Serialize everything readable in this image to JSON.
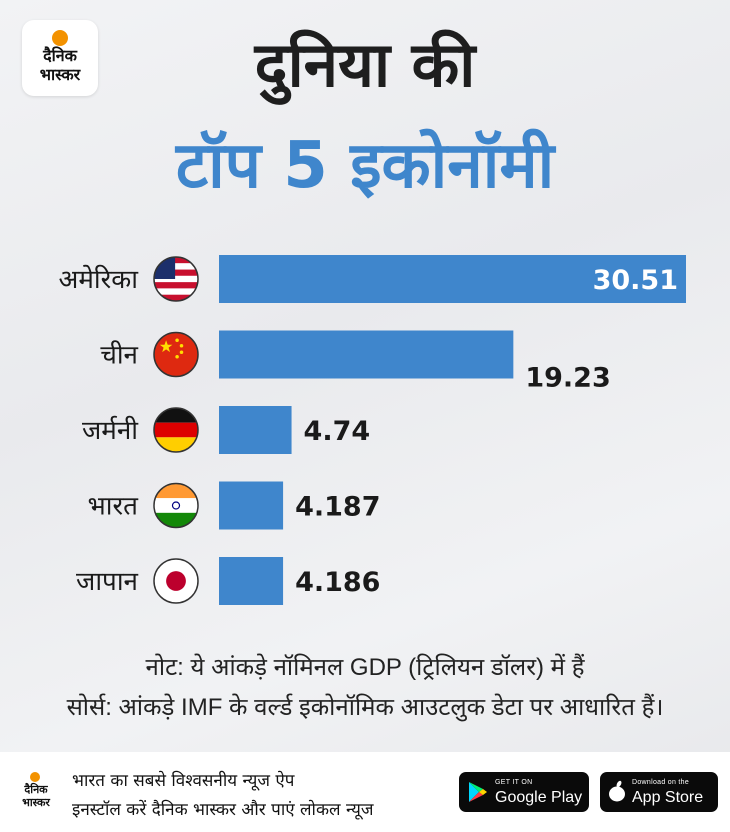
{
  "brand": {
    "logo_line1": "दैनिक",
    "logo_line2": "भास्कर"
  },
  "title": {
    "line1": "दुनिया की",
    "line2": "टॉप 5 इकोनॉमी"
  },
  "chart_data": {
    "type": "bar",
    "orientation": "horizontal",
    "categories": [
      "अमेरिका",
      "चीन",
      "जर्मनी",
      "भारत",
      "जापान"
    ],
    "values": [
      30.51,
      19.23,
      4.74,
      4.187,
      4.186
    ],
    "value_labels": [
      "30.51",
      "19.23",
      "4.74",
      "4.187",
      "4.186"
    ],
    "flags": [
      "usa-flag-icon",
      "china-flag-icon",
      "germany-flag-icon",
      "india-flag-icon",
      "japan-flag-icon"
    ],
    "bar_color": "#3f86cc",
    "xlim": [
      0,
      30.51
    ],
    "grid": false
  },
  "notes": {
    "line1": "नोट: ये आंकड़े नॉमिनल GDP (ट्रिलियन डॉलर) में हैं",
    "line2": "सोर्स: आंकड़े IMF के वर्ल्ड इकोनॉमिक आउटलुक डेटा पर आधारित हैं।"
  },
  "footer": {
    "line1": "भारत का सबसे विश्वसनीय न्यूज ऐप",
    "line2": "इनस्टॉल करें दैनिक भास्कर और पाएं लोकल न्यूज",
    "google_play": {
      "small": "GET IT ON",
      "big": "Google Play"
    },
    "app_store": {
      "small": "Download on the",
      "big": "App Store"
    }
  }
}
